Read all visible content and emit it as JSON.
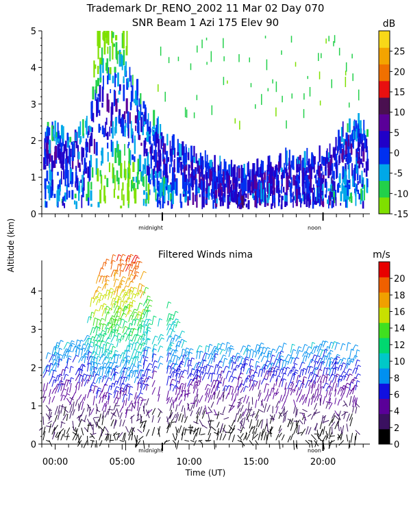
{
  "header": {
    "line1": "Trademark Dr_RENO_2002  11 Mar 02 Day 070",
    "line2": "SNR Beam 1 Azi 175 Elev 90"
  },
  "shared": {
    "ylabel": "Altitude (km)",
    "xlabel": "Time (UT)",
    "marker_midnight": "midnight",
    "marker_noon": "noon"
  },
  "chart_data": [
    {
      "type": "heatmap",
      "title": "SNR Beam 1 Azi 175 Elev 90",
      "ylabel": "Altitude (km)",
      "xlim": [
        -1,
        23.5
      ],
      "ylim": [
        0,
        5
      ],
      "yticks": [
        "0",
        "1",
        "2",
        "3",
        "4",
        "5"
      ],
      "colorbar": {
        "unit": "dB",
        "range": [
          -15,
          30
        ],
        "ticks": [
          "-15",
          "-10",
          "-5",
          "0",
          "5",
          "10",
          "15",
          "20",
          "25"
        ],
        "colors": [
          "#7fe000",
          "#22d04a",
          "#00a8e8",
          "#0030f0",
          "#2000c8",
          "#5a0098",
          "#4a1050",
          "#e81010",
          "#f07000",
          "#f4a400",
          "#f8d818"
        ]
      },
      "time_markers": [
        {
          "label": "midnight",
          "hour": 8
        },
        {
          "label": "noon",
          "hour": 20
        }
      ]
    },
    {
      "type": "scatter",
      "title": "Filtered Winds nima",
      "xlabel": "Time (UT)",
      "ylabel": "Altitude (km)",
      "xlim": [
        -1,
        23.5
      ],
      "ylim": [
        0,
        4.8
      ],
      "xticks": [
        "00:00",
        "05:00",
        "10:00",
        "15:00",
        "20:00"
      ],
      "yticks": [
        "0",
        "1",
        "2",
        "3",
        "4"
      ],
      "colorbar": {
        "unit": "m/s",
        "range": [
          0,
          22
        ],
        "ticks": [
          "0",
          "2",
          "4",
          "6",
          "8",
          "10",
          "12",
          "14",
          "16",
          "18",
          "20"
        ],
        "colors": [
          "#000000",
          "#3a1060",
          "#5a0098",
          "#1010e0",
          "#0090f0",
          "#00c8c8",
          "#00d870",
          "#40e020",
          "#c8e000",
          "#f0a000",
          "#f06000",
          "#e80000"
        ]
      },
      "time_markers": [
        {
          "label": "midnight",
          "hour": 8
        },
        {
          "label": "noon",
          "hour": 20
        }
      ]
    }
  ]
}
